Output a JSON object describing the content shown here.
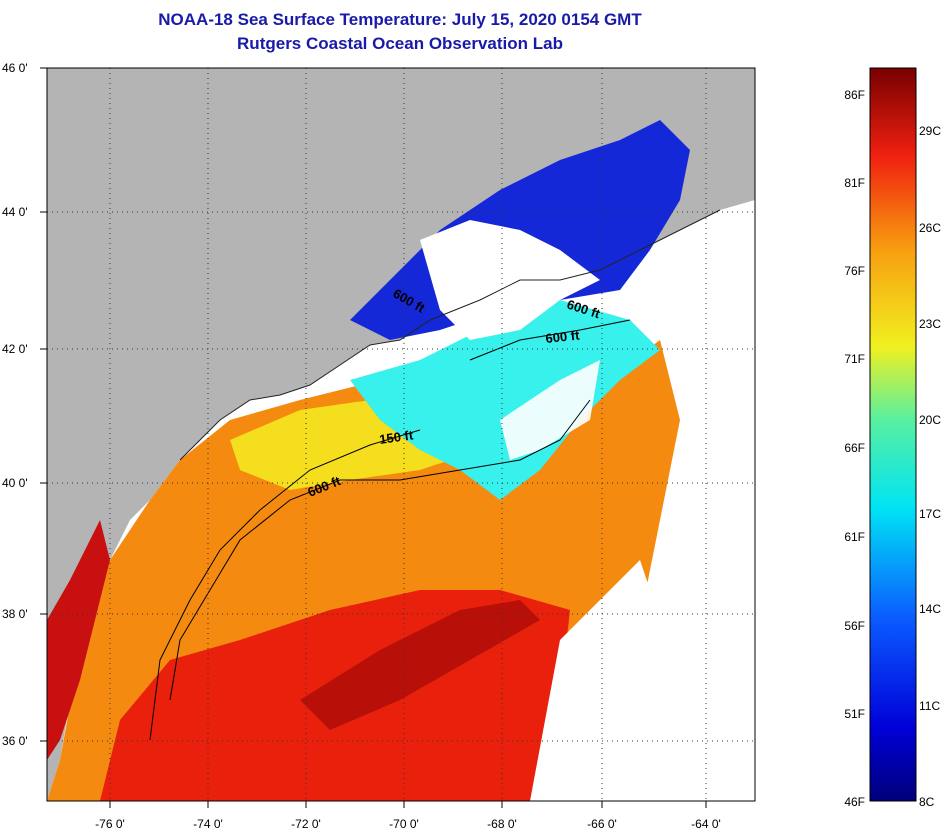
{
  "header": {
    "title": "NOAA-18 Sea Surface Temperature:  July 15, 2020 0154 GMT",
    "subtitle": "Rutgers Coastal Ocean Observation Lab"
  },
  "map": {
    "lat_labels": [
      "46 0'",
      "44 0'",
      "42 0'",
      "40 0'",
      "38 0'",
      "36 0'"
    ],
    "lon_labels": [
      "-76 0'",
      "-74 0'",
      "-72 0'",
      "-70 0'",
      "-68 0'",
      "-66 0'",
      "-64 0'"
    ],
    "contour_labels": [
      "600 ft",
      "600 ft",
      "600 ft",
      "150 ft",
      "600 ft"
    ],
    "colors": {
      "land": "#b4b4b4",
      "cloud": "#ffffff",
      "warm": "#e8200c",
      "orange": "#f48a10",
      "yellow": "#f4ec20",
      "cyan": "#38f0ec",
      "blue": "#1428d8"
    }
  },
  "colorbar": {
    "fahrenheit": [
      "86F",
      "81F",
      "76F",
      "71F",
      "66F",
      "61F",
      "56F",
      "51F",
      "46F"
    ],
    "celsius": [
      "29C",
      "26C",
      "23C",
      "20C",
      "17C",
      "14C",
      "11C",
      "8C"
    ]
  }
}
